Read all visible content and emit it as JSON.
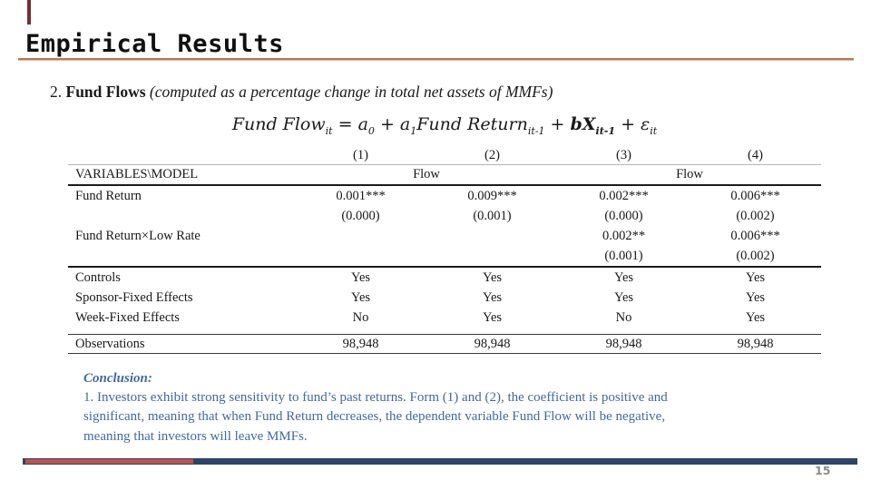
{
  "slide": {
    "title": "Empirical Results",
    "page_number": "15"
  },
  "subtitle": {
    "number": "2.",
    "heading": "Fund Flows",
    "note": "(computed as a percentage change in total net assets of MMFs)"
  },
  "equation": {
    "parts": [
      {
        "t": "Fund Flow",
        "sub": "it"
      },
      {
        "t": " = a",
        "sub": "0"
      },
      {
        "t": " + a",
        "sub": "1"
      },
      {
        "t": "Fund Return",
        "sub": "it-1"
      },
      {
        "t": " + "
      },
      {
        "t": "bX",
        "sub": "it-1",
        "bold": true
      },
      {
        "t": " + ε",
        "sub": "it"
      }
    ]
  },
  "table": {
    "col_numbers": [
      "(1)",
      "(2)",
      "(3)",
      "(4)"
    ],
    "row_header_label": "VARIABLES\\MODEL",
    "group_headers": [
      "Flow",
      "Flow"
    ],
    "rows": [
      {
        "label": "Fund Return",
        "cells": [
          "0.001***",
          "0.009***",
          "0.002***",
          "0.006***"
        ]
      },
      {
        "label": "",
        "cells": [
          "(0.000)",
          "(0.001)",
          "(0.000)",
          "(0.002)"
        ]
      },
      {
        "label": "Fund Return×Low Rate",
        "cells": [
          "",
          "",
          "0.002**",
          "0.006***"
        ]
      },
      {
        "label": "",
        "cells": [
          "",
          "",
          "(0.001)",
          "(0.002)"
        ],
        "rule_after": "dark"
      },
      {
        "label": "Controls",
        "cells": [
          "Yes",
          "Yes",
          "Yes",
          "Yes"
        ]
      },
      {
        "label": "Sponsor-Fixed Effects",
        "cells": [
          "Yes",
          "Yes",
          "Yes",
          "Yes"
        ]
      },
      {
        "label": "Week-Fixed Effects",
        "cells": [
          "No",
          "Yes",
          "No",
          "Yes"
        ],
        "rule_after": "thin-gap"
      },
      {
        "label": "Observations",
        "cells": [
          "98,948",
          "98,948",
          "98,948",
          "98,948"
        ],
        "obs": true,
        "rule_after": "thin"
      }
    ]
  },
  "conclusion": {
    "heading": "Conclusion:",
    "lines": [
      "1. Investors exhibit strong sensitivity to fund’s past returns. Form (1) and (2), the coefficient is positive and",
      "significant, meaning that when Fund Return decreases, the dependent variable Fund Flow will be negative,",
      "meaning that investors will leave MMFs."
    ]
  },
  "colors": {
    "title_underline": "#bd7550",
    "navy_bar": "#2e4468",
    "red_bar": "#b8544e",
    "conclusion_text": "#4169a1",
    "corner_mark": "#7b2d2d"
  }
}
